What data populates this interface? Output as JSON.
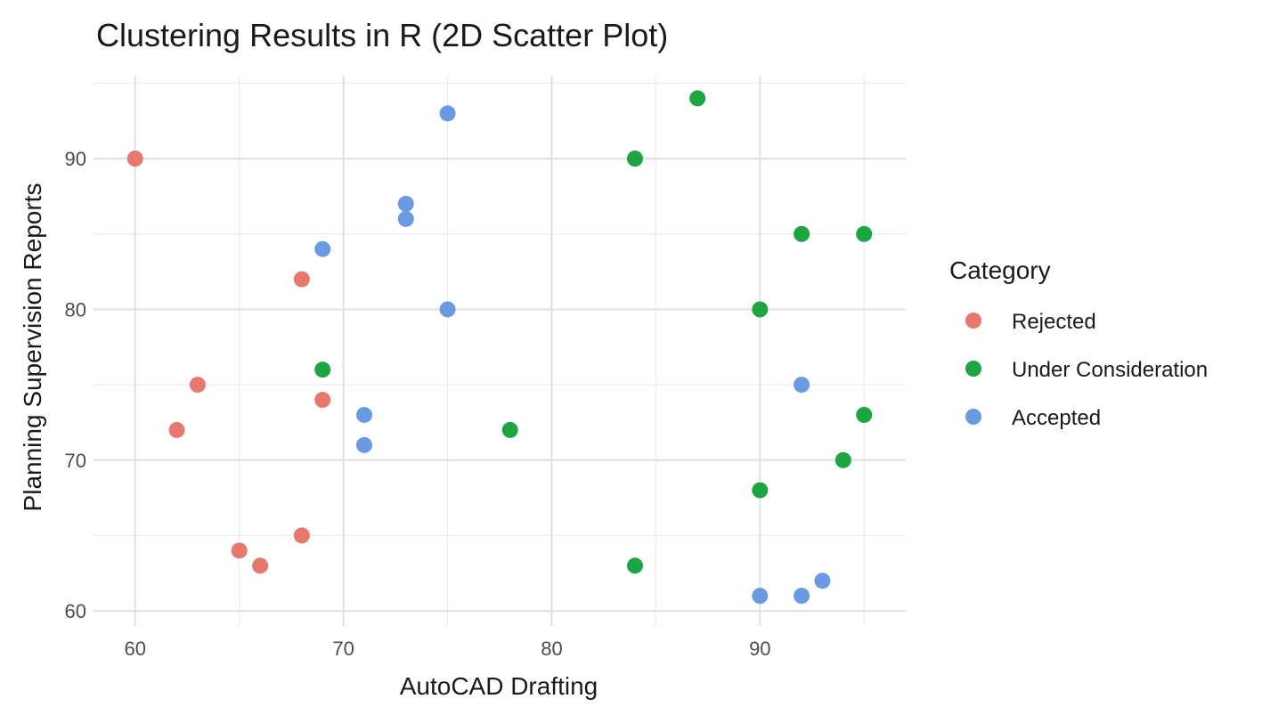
{
  "chart_data": {
    "type": "scatter",
    "title": "Clustering Results in R (2D Scatter Plot)",
    "xlabel": "AutoCAD Drafting",
    "ylabel": "Planning Supervision Reports",
    "xlim": [
      58,
      97
    ],
    "ylim": [
      59,
      95.5
    ],
    "x_ticks": [
      60,
      70,
      80,
      90
    ],
    "y_ticks": [
      60,
      70,
      80,
      90
    ],
    "x_minor": [
      65,
      75,
      85,
      95
    ],
    "y_minor": [
      65,
      75,
      85,
      95
    ],
    "grid": true,
    "legend": {
      "title": "Category",
      "position": "right"
    },
    "series": [
      {
        "name": "Rejected",
        "color": "#E8776E",
        "points": [
          {
            "x": 60,
            "y": 90
          },
          {
            "x": 68,
            "y": 82
          },
          {
            "x": 63,
            "y": 75
          },
          {
            "x": 69,
            "y": 74
          },
          {
            "x": 62,
            "y": 72
          },
          {
            "x": 68,
            "y": 65
          },
          {
            "x": 65,
            "y": 64
          },
          {
            "x": 66,
            "y": 63
          }
        ]
      },
      {
        "name": "Under Consideration",
        "color": "#1CA641",
        "points": [
          {
            "x": 87,
            "y": 94
          },
          {
            "x": 84,
            "y": 90
          },
          {
            "x": 92,
            "y": 85
          },
          {
            "x": 95,
            "y": 85
          },
          {
            "x": 90,
            "y": 80
          },
          {
            "x": 69,
            "y": 76
          },
          {
            "x": 95,
            "y": 73
          },
          {
            "x": 78,
            "y": 72
          },
          {
            "x": 94,
            "y": 70
          },
          {
            "x": 90,
            "y": 68
          },
          {
            "x": 84,
            "y": 63
          }
        ]
      },
      {
        "name": "Accepted",
        "color": "#6A9AE4",
        "points": [
          {
            "x": 75,
            "y": 93
          },
          {
            "x": 73,
            "y": 87
          },
          {
            "x": 73,
            "y": 86
          },
          {
            "x": 69,
            "y": 84
          },
          {
            "x": 75,
            "y": 80
          },
          {
            "x": 92,
            "y": 75
          },
          {
            "x": 71,
            "y": 73
          },
          {
            "x": 71,
            "y": 71
          },
          {
            "x": 93,
            "y": 62
          },
          {
            "x": 90,
            "y": 61
          },
          {
            "x": 92,
            "y": 61
          }
        ]
      }
    ]
  }
}
